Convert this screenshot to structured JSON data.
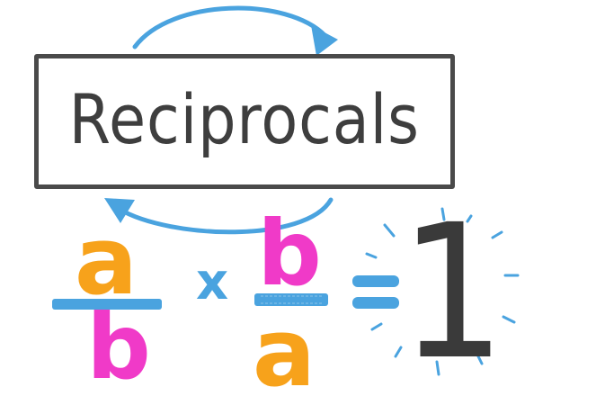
{
  "title": "Reciprocals",
  "equation": {
    "fraction_left": {
      "numerator": "a",
      "denominator": "b"
    },
    "operator": "x",
    "fraction_right": {
      "numerator": "b",
      "denominator": "a"
    },
    "equals": "=",
    "result": "1"
  },
  "colors": {
    "box_stroke": "#4a4a4a",
    "title_text": "#3e3e3e",
    "arrow": "#4aa3df",
    "letter_a": "#f7a21b",
    "letter_b": "#f03ac8",
    "fraction_bar": "#4aa3df",
    "result": "#3a3a3a"
  },
  "icons": {
    "arrow_top": "curved-arrow-right-icon",
    "arrow_bottom": "curved-arrow-left-icon",
    "sparkle": "sparkle-lines-icon"
  }
}
